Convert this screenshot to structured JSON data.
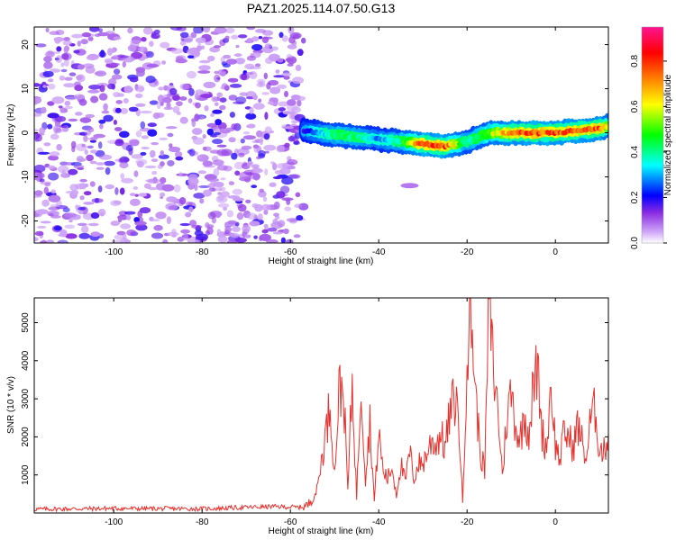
{
  "figure": {
    "title": "PAZ1.2025.114.07.50.G13"
  },
  "chart_data": [
    {
      "type": "heatmap",
      "xlabel": "Height of straight line (km)",
      "ylabel": "Frequency (Hz)",
      "xlim": [
        -118,
        12
      ],
      "ylim": [
        -25,
        24
      ],
      "xticks": [
        -100,
        -80,
        -60,
        -40,
        -20,
        0
      ],
      "yticks": [
        -20,
        -10,
        0,
        10,
        20
      ],
      "colorbar": {
        "label": "Normalized spectral amplitude",
        "range": [
          0,
          0.95
        ],
        "ticks": [
          "0.0",
          "0.2",
          "0.4",
          "0.6",
          "0.8"
        ],
        "tick_values": [
          0.0,
          0.2,
          0.4,
          0.6,
          0.8
        ],
        "colors": [
          "#ffffff",
          "#d0a8f8",
          "#8a2be2",
          "#0000ff",
          "#00ffff",
          "#00ff00",
          "#ffff00",
          "#ff8000",
          "#ff0000",
          "#ff1493"
        ]
      },
      "noise_region": {
        "x": [
          -118,
          -57
        ],
        "y": [
          -25,
          24
        ],
        "amplitude": [
          0.05,
          0.2
        ]
      },
      "signal_ridge": {
        "x": [
          -57,
          -50,
          -45,
          -40,
          -35,
          -30,
          -25,
          -20,
          -15,
          -10,
          -5,
          0,
          5,
          10,
          12
        ],
        "frequency": [
          0.5,
          -0.5,
          -1.0,
          -1.5,
          -2.0,
          -2.5,
          -3.0,
          -2.0,
          0.0,
          0.0,
          0.0,
          0.0,
          0.5,
          1.0,
          1.5
        ],
        "amplitude": [
          0.2,
          0.45,
          0.45,
          0.3,
          0.45,
          0.85,
          0.85,
          0.4,
          0.6,
          0.8,
          0.85,
          0.85,
          0.8,
          0.85,
          0.6
        ]
      }
    },
    {
      "type": "line",
      "xlabel": "Height of straight line (km)",
      "ylabel": "SNR (10 * v/v)",
      "xlim": [
        -118,
        12
      ],
      "ylim": [
        0,
        5650
      ],
      "xticks": [
        -100,
        -80,
        -60,
        -40,
        -20,
        0
      ],
      "yticks": [
        1000,
        2000,
        3000,
        4000,
        5000
      ],
      "line_color": "#e8302c",
      "series": [
        {
          "x": [
            -118,
            -100,
            -80,
            -64,
            -58,
            -56,
            -54,
            -52,
            -51,
            -50,
            -49,
            -48,
            -47,
            -46,
            -45,
            -44,
            -43,
            -42,
            -41,
            -40,
            -39,
            -38,
            -37,
            -36,
            -35,
            -34,
            -33,
            -32,
            -31,
            -30,
            -29,
            -28,
            -27,
            -26,
            -25,
            -24,
            -23,
            -22,
            -21,
            -20,
            -19,
            -18,
            -17,
            -16,
            -15,
            -14,
            -13,
            -12,
            -11,
            -10,
            -9,
            -8,
            -7,
            -6,
            -5,
            -4,
            -3,
            -2,
            -1,
            0,
            1,
            2,
            3,
            4,
            5,
            6,
            7,
            8,
            9,
            10,
            11,
            12
          ],
          "y": [
            100,
            120,
            110,
            170,
            150,
            200,
            600,
            2100,
            2900,
            1000,
            3200,
            3300,
            600,
            3400,
            400,
            3500,
            900,
            2400,
            300,
            2100,
            1100,
            900,
            1200,
            500,
            1300,
            800,
            1600,
            900,
            1300,
            1300,
            1600,
            1900,
            1800,
            2100,
            1700,
            2500,
            3000,
            2700,
            250,
            4200,
            5150,
            3000,
            1600,
            1100,
            5650,
            3700,
            2700,
            1000,
            2500,
            3200,
            2300,
            1900,
            2600,
            2100,
            3300,
            3800,
            2100,
            1700,
            3400,
            1800,
            1400,
            2100,
            2000,
            1700,
            2300,
            1900,
            1400,
            2500,
            2700,
            1700,
            1600,
            2100
          ]
        }
      ]
    }
  ]
}
